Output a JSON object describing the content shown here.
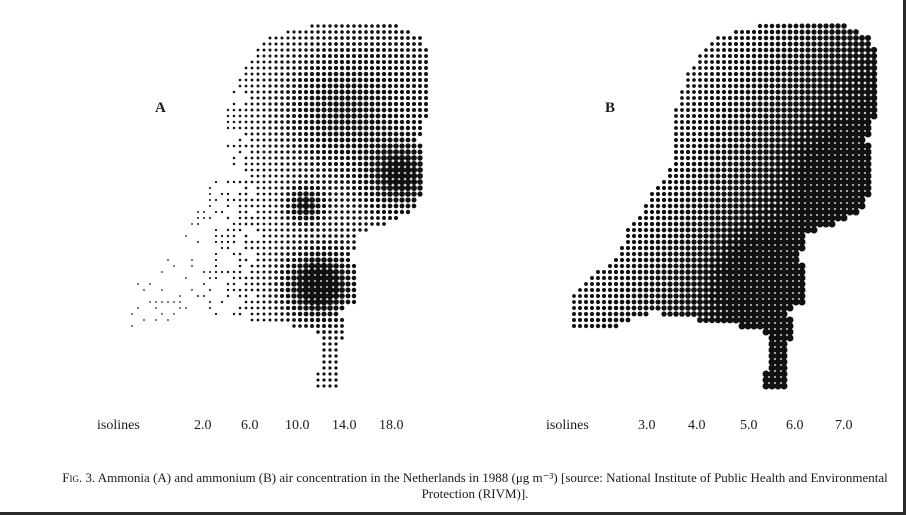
{
  "panel_a": {
    "label": "A",
    "isolines_label": "isolines",
    "isoline_values": [
      "2.0",
      "6.0",
      "10.0",
      "14.0",
      "18.0"
    ]
  },
  "panel_b": {
    "label": "B",
    "isolines_label": "isolines",
    "isoline_values": [
      "3.0",
      "4.0",
      "5.0",
      "6.0",
      "7.0"
    ]
  },
  "caption": {
    "fig_label": "Fig. 3.",
    "text": "Ammonia (A) and ammonium (B) air concentration in the Netherlands in 1988 (μg m⁻³) [source: National Institute of Public Health and Environmental Protection (RIVM)]."
  },
  "colors": {
    "ink": "#111111",
    "paper": "#ffffff"
  }
}
